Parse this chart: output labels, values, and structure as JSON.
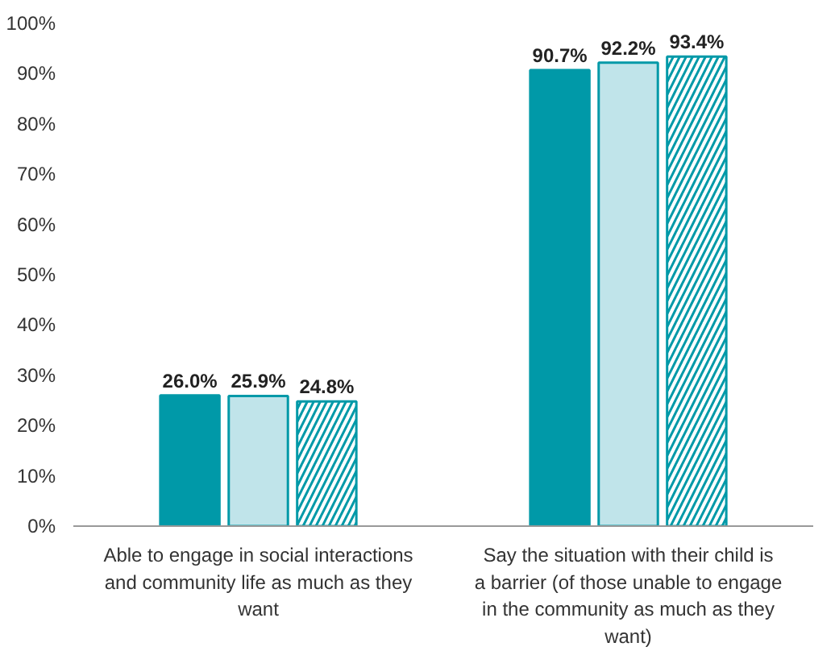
{
  "chart_data": {
    "type": "bar",
    "categories": [
      "Able to engage in social interactions and community life as much as they want",
      "Say the situation with their child is a barrier (of those unable to engage in the community as much as they want)"
    ],
    "series": [
      {
        "color": "#0099a8",
        "values": [
          26.0,
          90.7
        ],
        "value_labels": [
          "26.0%",
          "90.7%"
        ]
      },
      {
        "color": "#c0e4ea",
        "values": [
          25.9,
          92.2
        ],
        "value_labels": [
          "25.9%",
          "92.2%"
        ]
      },
      {
        "color": "#ffffff",
        "values": [
          24.8,
          93.4
        ],
        "value_labels": [
          "24.8%",
          "93.4%"
        ]
      }
    ],
    "ylim": [
      0,
      100
    ],
    "yticks": [
      {
        "value": 0,
        "label": "0%"
      },
      {
        "value": 10,
        "label": "10%"
      },
      {
        "value": 20,
        "label": "20%"
      },
      {
        "value": 30,
        "label": "30%"
      },
      {
        "value": 40,
        "label": "40%"
      },
      {
        "value": 50,
        "label": "50%"
      },
      {
        "value": 60,
        "label": "60%"
      },
      {
        "value": 70,
        "label": "70%"
      },
      {
        "value": 80,
        "label": "80%"
      },
      {
        "value": 90,
        "label": "90%"
      },
      {
        "value": 100,
        "label": "100%"
      }
    ],
    "grid": false
  }
}
